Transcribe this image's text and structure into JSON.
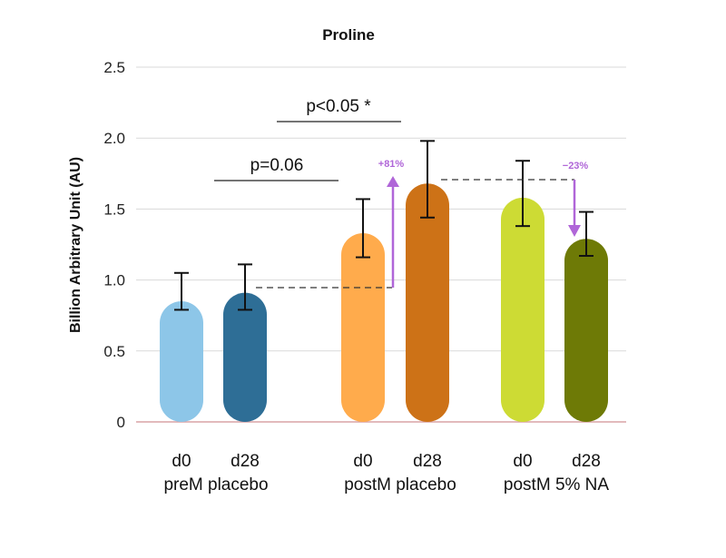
{
  "chart_data": {
    "type": "bar",
    "title": "Proline",
    "ylabel": "Billion Arbitrary Unit (AU)",
    "ylim": [
      0,
      2.5
    ],
    "yticks": [
      "0",
      "0.5",
      "1.0",
      "1.5",
      "2.0",
      "2.5"
    ],
    "grid": true,
    "categories": [
      "d0",
      "d28",
      "d0",
      "d28",
      "d0",
      "d28"
    ],
    "groups": [
      "preM placebo",
      "postM placebo",
      "postM 5% NA"
    ],
    "values": [
      0.85,
      0.91,
      1.33,
      1.68,
      1.58,
      1.29
    ],
    "error_low": [
      0.79,
      0.79,
      1.16,
      1.44,
      1.38,
      1.17
    ],
    "error_high": [
      1.05,
      1.11,
      1.57,
      1.98,
      1.84,
      1.48
    ],
    "colors": [
      "#8dc6e8",
      "#2e6e96",
      "#ffab4c",
      "#cd7217",
      "#cddb34",
      "#6e7a06"
    ],
    "annotations": {
      "p_value_1": "p=0.06",
      "p_value_2": "p<0.05 *",
      "change_1": "+81%",
      "change_2": "−23%"
    },
    "accent_color": "#b066d8"
  }
}
